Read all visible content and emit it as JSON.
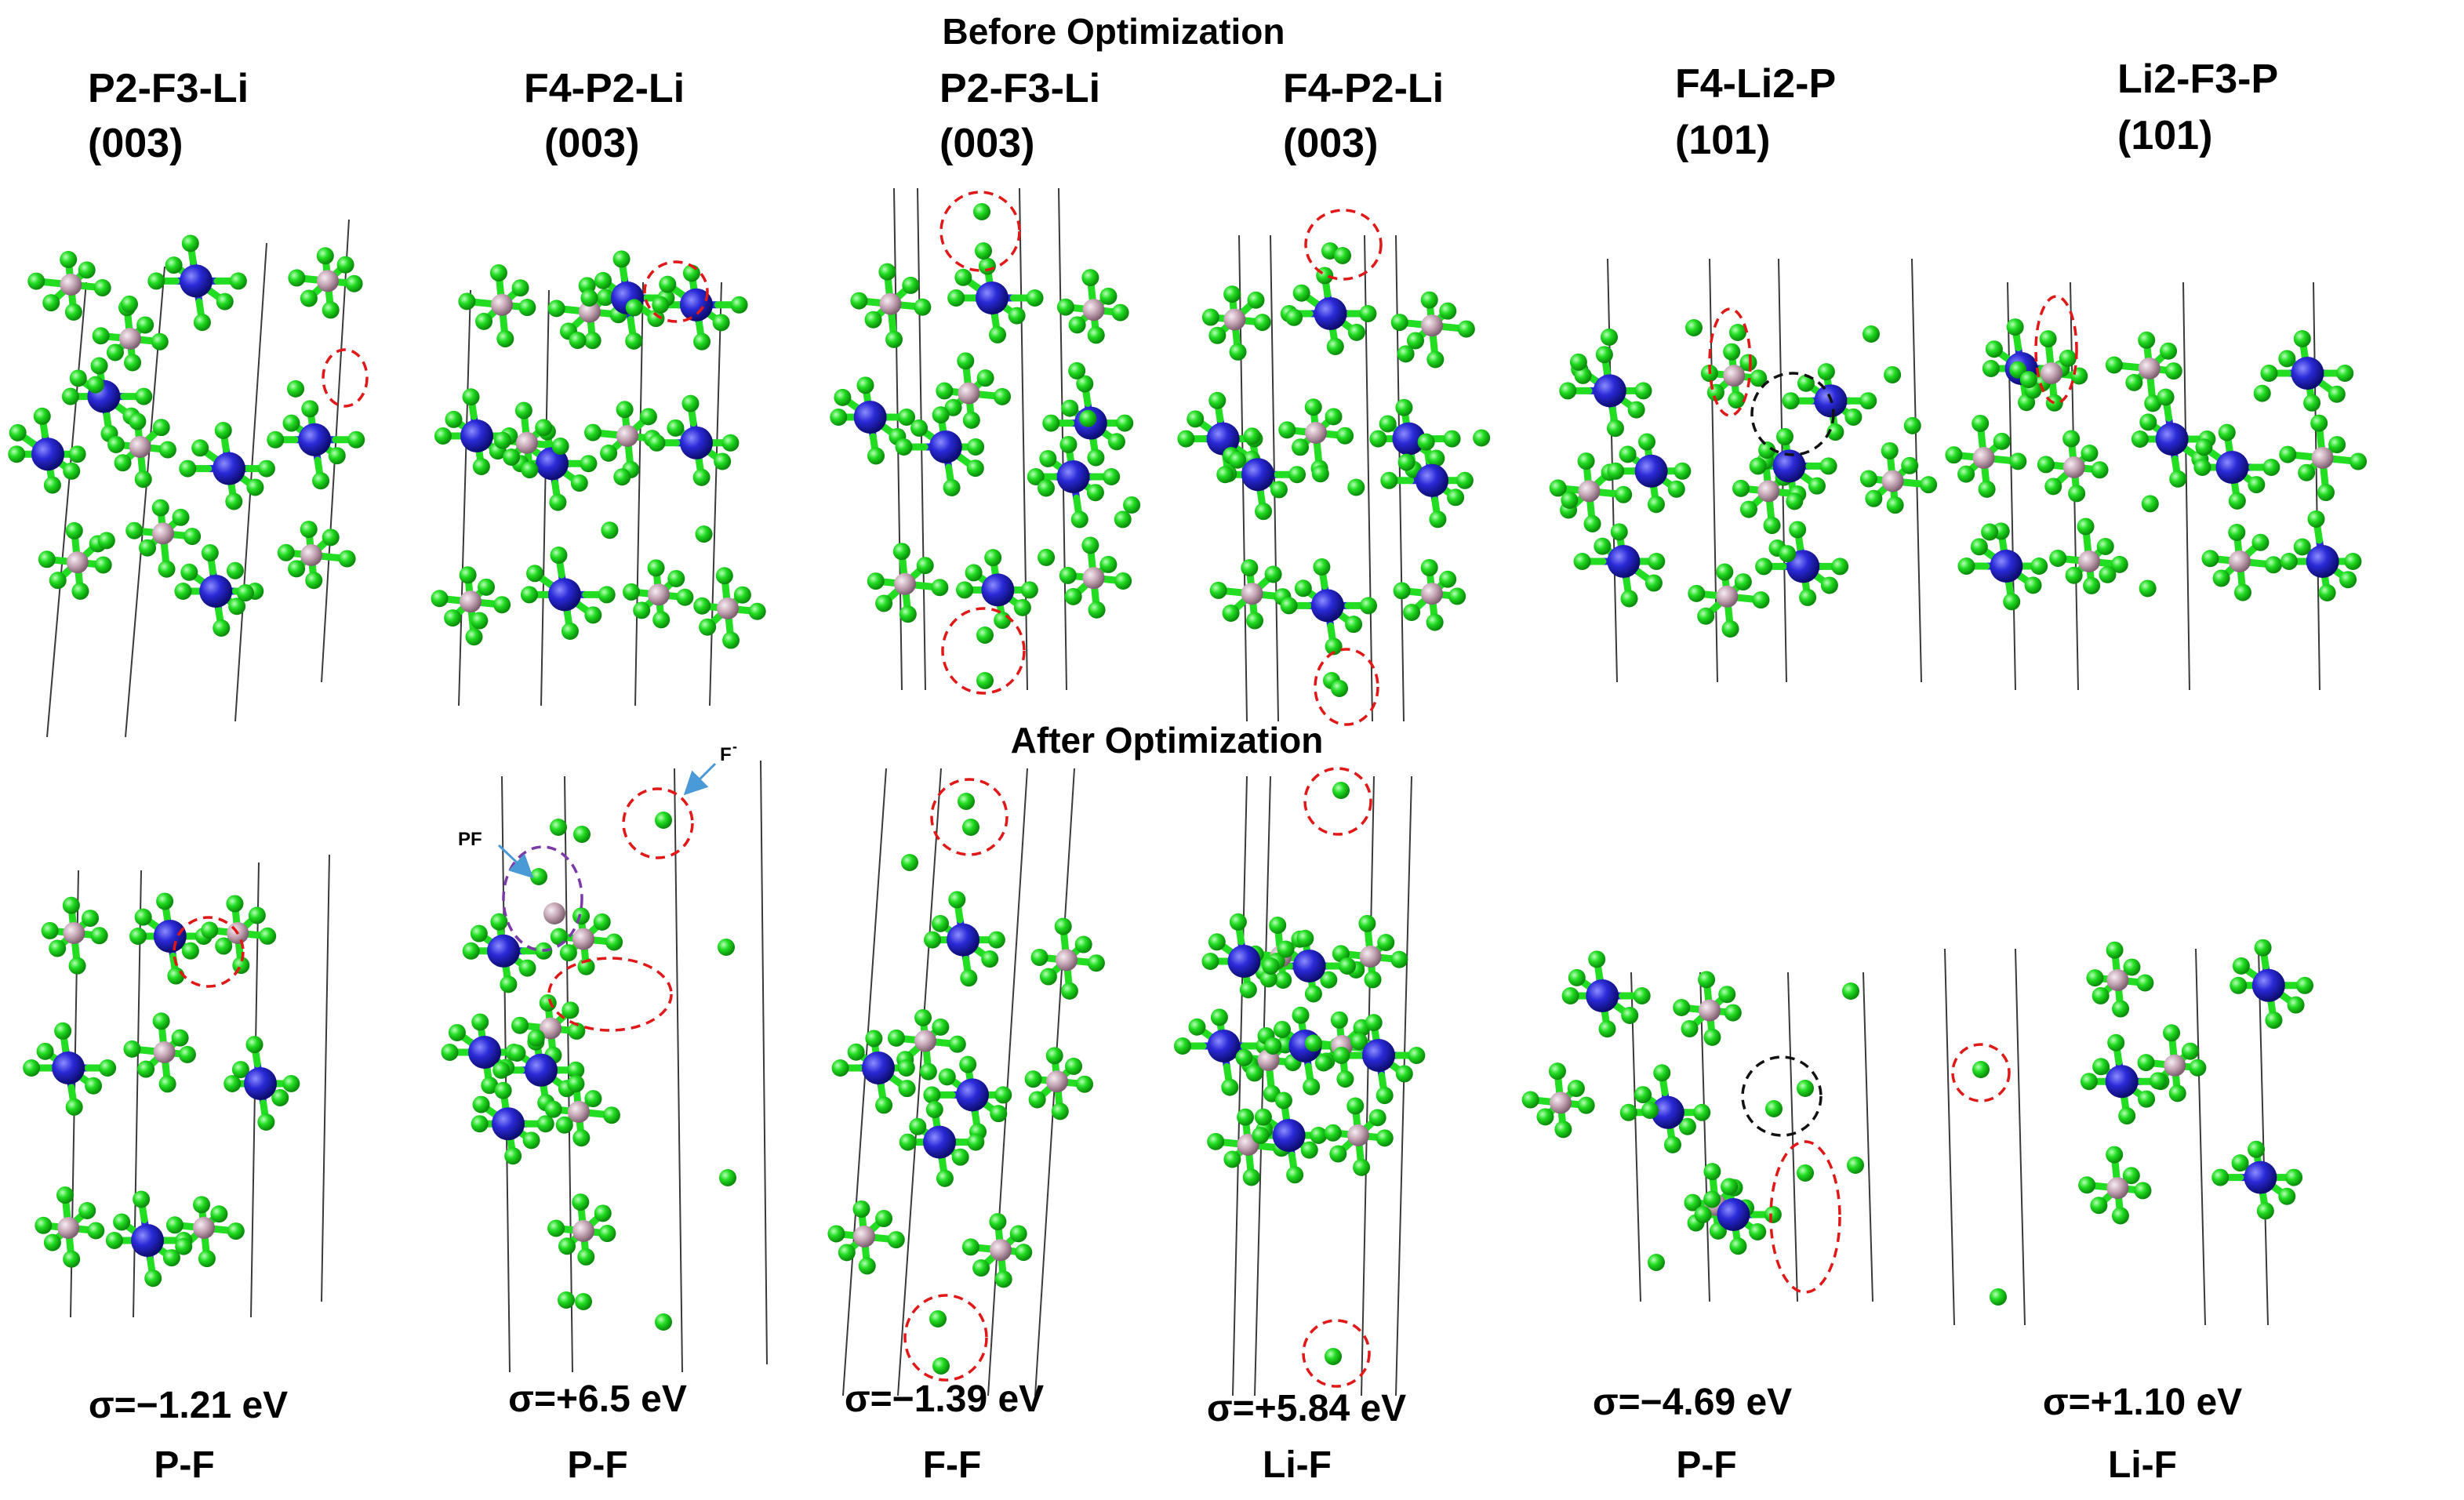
{
  "headings": {
    "before": "Before Optimization",
    "after": "After Optimization"
  },
  "columns": [
    {
      "name": "P2-F3-Li",
      "plane": "(003)",
      "energy": "σ=−1.21 eV",
      "bond": "P-F"
    },
    {
      "name": "F4-P2-Li",
      "plane": "(003)",
      "energy": "σ=+6.5 eV",
      "bond": "P-F"
    },
    {
      "name": "P2-F3-Li",
      "plane": "(003)",
      "energy": "σ=−1.39 eV",
      "bond": "F-F"
    },
    {
      "name": "F4-P2-Li",
      "plane": "(003)",
      "energy": "σ=+5.84 eV",
      "bond": "Li-F"
    },
    {
      "name": "F4-Li2-P",
      "plane": "(101)",
      "energy": "σ=−4.69 eV",
      "bond": "P-F"
    },
    {
      "name": "Li2-F3-P",
      "plane": "(101)",
      "energy": "σ=+1.10 eV",
      "bond": "Li-F"
    }
  ],
  "annotations": {
    "pf_label": "PF",
    "f_label": "F",
    "f_charge": "-"
  },
  "colors": {
    "fluorine": "#22dd22",
    "lithium": "#2a2ad8",
    "phosphorus": "#c7a8b8",
    "highlight_red": "#e01818",
    "highlight_black": "#111111",
    "highlight_purple": "#7a3aa8",
    "pointer_arrow": "#4a9ad8"
  }
}
